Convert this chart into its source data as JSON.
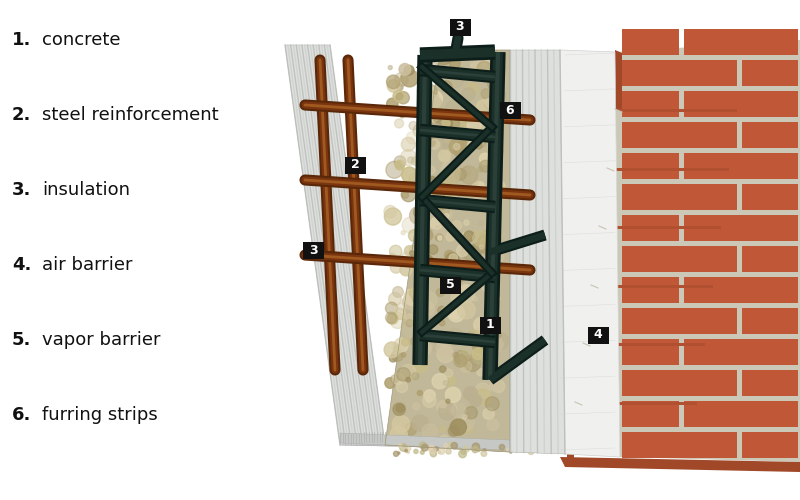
{
  "bg_color": "#ffffff",
  "legend_items": [
    {
      "num": "1.",
      "label": "concrete"
    },
    {
      "num": "2.",
      "label": "steel reinforcement"
    },
    {
      "num": "3.",
      "label": "insulation"
    },
    {
      "num": "4.",
      "label": "air barrier"
    },
    {
      "num": "5.",
      "label": "vapor barrier"
    },
    {
      "num": "6.",
      "label": "furring strips"
    }
  ],
  "num_fontsize": 13,
  "label_fontsize": 13,
  "foam_color": "#e8eae8",
  "foam_rib_color": "#c0c3c0",
  "foam_top_color": "#d0d3d0",
  "concrete_color": "#c8bfa0",
  "concrete_top_color": "#b8b090",
  "barrier_color": "#f0f0ee",
  "brick_color": "#c05838",
  "mortar_color": "#ccc8b8",
  "brick_side_color": "#a04828",
  "rebar_color": "#7a3510",
  "rebar_light": "#a05a20",
  "frame_color": "#1a3028",
  "frame_light": "#2a4038",
  "badge_bg": "#111111",
  "badge_fg": "#ffffff"
}
